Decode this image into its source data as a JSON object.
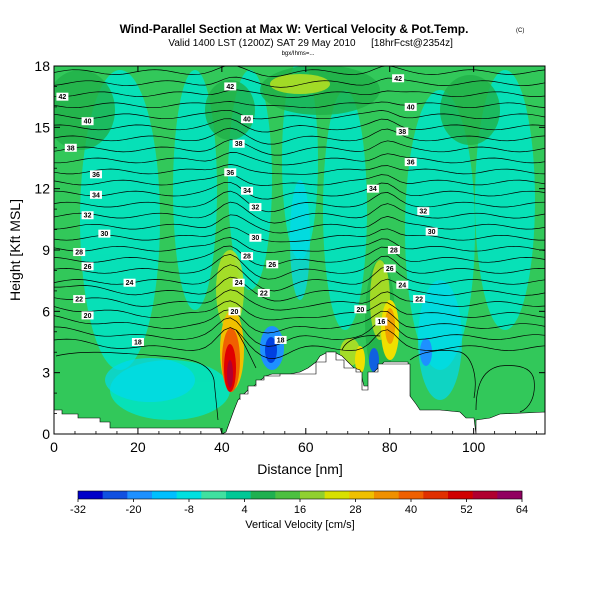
{
  "chart_data": {
    "type": "heatmap",
    "title": "Wind-Parallel Section at Max W: Vertical Velocity & Pot.Temp.",
    "copyright": "(C)",
    "subtitle": "Valid 1400 LST (1200Z) SAT 29 May 2010",
    "subtitle_model": "[18hrFcst@2354z]",
    "subsubtitle": "bgx/Ihms=...",
    "xlabel": "Distance [nm]",
    "ylabel": "Height [Kft MSL]",
    "xlim": [
      0,
      117
    ],
    "ylim": [
      0,
      18
    ],
    "x_ticks": [
      0,
      20,
      40,
      60,
      80,
      100
    ],
    "y_ticks": [
      0,
      3,
      6,
      9,
      12,
      15,
      18
    ],
    "colorbar": {
      "label": "Vertical Velocity [cm/s]",
      "ticks": [
        -32,
        -20,
        -8,
        4,
        16,
        28,
        40,
        52,
        64
      ],
      "colors": [
        "#0000c8",
        "#1050e0",
        "#1e90ff",
        "#00bfff",
        "#00e0e0",
        "#40e0a0",
        "#00c896",
        "#20b050",
        "#4cc040",
        "#90d030",
        "#d8e000",
        "#f0c000",
        "#f09000",
        "#f06000",
        "#e03000",
        "#d00000",
        "#b00030",
        "#900060"
      ]
    },
    "contour_labels": [
      {
        "x": 2,
        "y": 16.5,
        "label": "42"
      },
      {
        "x": 8,
        "y": 15.3,
        "label": "40"
      },
      {
        "x": 4,
        "y": 14.0,
        "label": "38"
      },
      {
        "x": 10,
        "y": 12.7,
        "label": "36"
      },
      {
        "x": 10,
        "y": 11.7,
        "label": "34"
      },
      {
        "x": 8,
        "y": 10.7,
        "label": "32"
      },
      {
        "x": 12,
        "y": 9.8,
        "label": "30"
      },
      {
        "x": 6,
        "y": 8.9,
        "label": "28"
      },
      {
        "x": 8,
        "y": 8.2,
        "label": "26"
      },
      {
        "x": 18,
        "y": 7.4,
        "label": "24"
      },
      {
        "x": 6,
        "y": 6.6,
        "label": "22"
      },
      {
        "x": 8,
        "y": 5.8,
        "label": "20"
      },
      {
        "x": 20,
        "y": 4.5,
        "label": "18"
      },
      {
        "x": 42,
        "y": 17.0,
        "label": "42"
      },
      {
        "x": 46,
        "y": 15.4,
        "label": "40"
      },
      {
        "x": 44,
        "y": 14.2,
        "label": "38"
      },
      {
        "x": 42,
        "y": 12.8,
        "label": "36"
      },
      {
        "x": 46,
        "y": 11.9,
        "label": "34"
      },
      {
        "x": 48,
        "y": 11.1,
        "label": "32"
      },
      {
        "x": 48,
        "y": 9.6,
        "label": "30"
      },
      {
        "x": 46,
        "y": 8.7,
        "label": "28"
      },
      {
        "x": 52,
        "y": 8.3,
        "label": "26"
      },
      {
        "x": 44,
        "y": 7.4,
        "label": "24"
      },
      {
        "x": 50,
        "y": 6.9,
        "label": "22"
      },
      {
        "x": 43,
        "y": 6.0,
        "label": "20"
      },
      {
        "x": 54,
        "y": 4.6,
        "label": "18"
      },
      {
        "x": 82,
        "y": 17.4,
        "label": "42"
      },
      {
        "x": 85,
        "y": 16.0,
        "label": "40"
      },
      {
        "x": 83,
        "y": 14.8,
        "label": "38"
      },
      {
        "x": 85,
        "y": 13.3,
        "label": "36"
      },
      {
        "x": 76,
        "y": 12.0,
        "label": "34"
      },
      {
        "x": 88,
        "y": 10.9,
        "label": "32"
      },
      {
        "x": 90,
        "y": 9.9,
        "label": "30"
      },
      {
        "x": 81,
        "y": 9.0,
        "label": "28"
      },
      {
        "x": 80,
        "y": 8.1,
        "label": "26"
      },
      {
        "x": 83,
        "y": 7.3,
        "label": "24"
      },
      {
        "x": 87,
        "y": 6.6,
        "label": "22"
      },
      {
        "x": 73,
        "y": 6.1,
        "label": "20"
      },
      {
        "x": 78,
        "y": 5.5,
        "label": "16"
      }
    ]
  }
}
